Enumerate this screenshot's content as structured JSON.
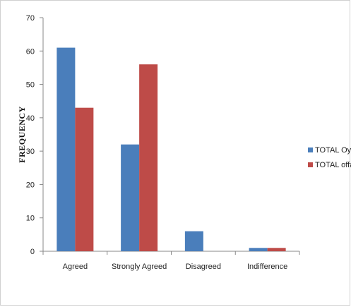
{
  "chart_data": {
    "type": "bar",
    "title": "",
    "xlabel": "",
    "ylabel": "FREQUENCY",
    "ylim": [
      0,
      70
    ],
    "yticks": [
      0,
      10,
      20,
      30,
      40,
      50,
      60,
      70
    ],
    "categories": [
      "Agreed",
      "Strongly Agreed",
      "Disagreed",
      "Indifference"
    ],
    "series": [
      {
        "name": "TOTAL Oyo",
        "color": "#4a7ebb",
        "values": [
          61,
          32,
          6,
          1
        ]
      },
      {
        "name": "TOTAL offa",
        "color": "#be4b48",
        "values": [
          43,
          56,
          0,
          1
        ]
      }
    ],
    "grid": false,
    "legend_position": "right"
  }
}
